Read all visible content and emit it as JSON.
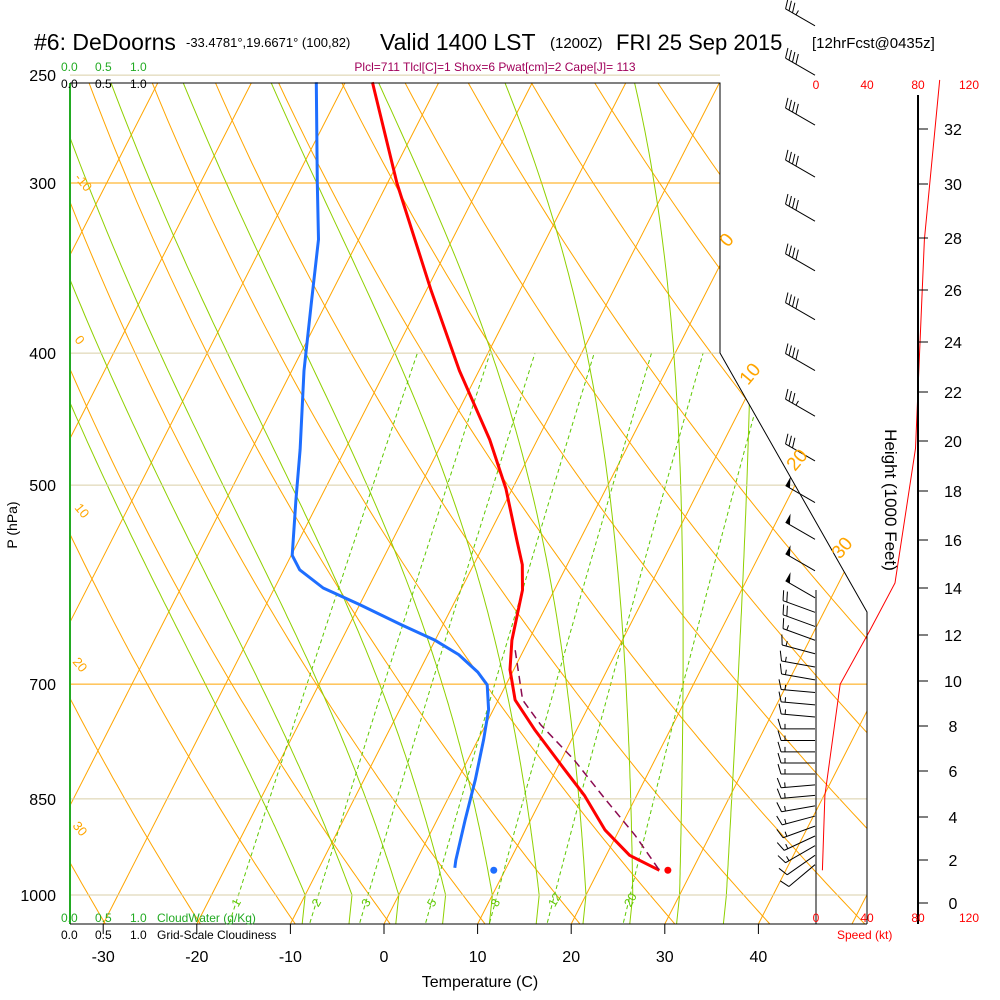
{
  "header": {
    "station": "#6: DeDoorns",
    "coords": "-33.4781°,19.6671° (100,82)",
    "valid": "Valid 1400 LST",
    "utc": "(1200Z)",
    "date": "FRI 25 Sep 2015",
    "forecast": "[12hrFcst@0435z]",
    "params": "Plcl=711 Tlcl[C]=1 Shox=6 Pwat[cm]=2 Cape[J]= 113"
  },
  "colors": {
    "temperature": "#ff0000",
    "dewpoint": "#1e6eff",
    "parcel": "#8b0a50",
    "isotherm": "#ffa500",
    "moist": "#8fd000",
    "mixing": "#5ec800",
    "wind_speed": "#ff0000"
  },
  "chart_data": {
    "type": "line",
    "title": "Skew-T log-P sounding",
    "xlabel": "Temperature (C)",
    "ylabel": "P (hPa)",
    "y2label": "Height (1000 Feet)",
    "x_ticks": [
      "-30",
      "-20",
      "-10",
      "0",
      "10",
      "20",
      "30",
      "40"
    ],
    "x_tick_values": [
      -30,
      -20,
      -10,
      0,
      10,
      20,
      30,
      40
    ],
    "p_ticks": [
      "250",
      "300",
      "400",
      "500",
      "700",
      "850",
      "1000"
    ],
    "p_tick_values": [
      250,
      300,
      400,
      500,
      700,
      850,
      1000
    ],
    "height_ticks": [
      "0",
      "2",
      "4",
      "6",
      "8",
      "10",
      "12",
      "14",
      "16",
      "18",
      "20",
      "22",
      "24",
      "26",
      "28",
      "30",
      "32"
    ],
    "isotherm_labels_left": [
      "-10",
      "0",
      "10",
      "20",
      "30"
    ],
    "isotherm_labels_right": [
      "0",
      "10",
      "20",
      "30"
    ],
    "mixing_ratio_labels": [
      "1",
      "2",
      "3",
      "5",
      "8",
      "12",
      "20"
    ],
    "mixing_ratio_values": [
      1,
      2,
      3,
      5,
      8,
      12,
      20
    ],
    "cloud_top": {
      "scale": [
        "0.0",
        "0.5",
        "1.0"
      ]
    },
    "cloud_bottom": {
      "green_scale": [
        "0.0",
        "0.5",
        "1.0"
      ],
      "green_label": "CloudWater (g/Kg)",
      "black_scale": [
        "0.0",
        "0.5",
        "1.0"
      ],
      "black_label": "Grid-Scale Cloudiness"
    },
    "speed_axis": {
      "ticks": [
        "0",
        "40",
        "80",
        "120"
      ],
      "values": [
        0,
        40,
        80,
        120
      ],
      "label": "Speed (kt)"
    },
    "series": [
      {
        "name": "Temperature",
        "p": [
          253,
          300,
          359,
          412,
          463,
          503,
          549,
          572,
          597,
          650,
          683,
          719,
          757,
          809,
          845,
          896,
          935,
          959
        ],
        "t": [
          -47.1,
          -39.0,
          -29.6,
          -22.1,
          -15.1,
          -10.7,
          -6.7,
          -4.8,
          -3.4,
          -1.8,
          -0.4,
          1.8,
          5.6,
          10.9,
          14.4,
          18.5,
          22.5,
          26.5
        ]
      },
      {
        "name": "Dewpoint",
        "p": [
          253,
          300,
          330,
          366,
          412,
          471,
          513,
          563,
          577,
          595,
          612,
          633,
          650,
          666,
          686,
          701,
          731,
          769,
          823,
          881,
          943,
          955
        ],
        "t": [
          -53.1,
          -47.5,
          -44.3,
          -41.7,
          -38.7,
          -34.8,
          -32.5,
          -29.9,
          -28.3,
          -24.8,
          -20.0,
          -14.5,
          -10.0,
          -6.7,
          -3.7,
          -2.0,
          -0.5,
          0.6,
          1.9,
          3.0,
          4.2,
          4.5
        ]
      },
      {
        "name": "Parcel",
        "p": [
          661,
          719,
          750,
          796,
          851,
          904,
          959
        ],
        "t": [
          -0.9,
          2.6,
          5.9,
          11.4,
          16.9,
          22.0,
          26.5
        ]
      }
    ],
    "surface_points": {
      "temperature": {
        "p": 959,
        "t": 27.4
      },
      "dewpoint": {
        "p": 959,
        "t": 8.8
      }
    },
    "wind_speed_profile": {
      "p": [
        959,
        845,
        700,
        640,
        590,
        470,
        330,
        252
      ],
      "speed_kt": [
        5,
        7,
        19,
        42,
        62,
        78,
        85,
        97
      ]
    },
    "winds": [
      {
        "p": 230,
        "dir": 300,
        "spd": 35
      },
      {
        "p": 250,
        "dir": 300,
        "spd": 40
      },
      {
        "p": 272,
        "dir": 300,
        "spd": 40
      },
      {
        "p": 297,
        "dir": 300,
        "spd": 40
      },
      {
        "p": 320,
        "dir": 300,
        "spd": 40
      },
      {
        "p": 348,
        "dir": 300,
        "spd": 40
      },
      {
        "p": 378,
        "dir": 300,
        "spd": 40
      },
      {
        "p": 412,
        "dir": 300,
        "spd": 40
      },
      {
        "p": 445,
        "dir": 300,
        "spd": 35
      },
      {
        "p": 480,
        "dir": 300,
        "spd": 30
      },
      {
        "p": 515,
        "dir": 300,
        "spd": 50
      },
      {
        "p": 548,
        "dir": 300,
        "spd": 50
      },
      {
        "p": 578,
        "dir": 300,
        "spd": 50
      },
      {
        "p": 605,
        "dir": 300,
        "spd": 50
      },
      {
        "p": 620,
        "dir": 290,
        "spd": 20
      },
      {
        "p": 635,
        "dir": 290,
        "spd": 20
      },
      {
        "p": 650,
        "dir": 290,
        "spd": 15
      },
      {
        "p": 665,
        "dir": 285,
        "spd": 15
      },
      {
        "p": 680,
        "dir": 280,
        "spd": 15
      },
      {
        "p": 695,
        "dir": 280,
        "spd": 15
      },
      {
        "p": 710,
        "dir": 275,
        "spd": 15
      },
      {
        "p": 725,
        "dir": 275,
        "spd": 15
      },
      {
        "p": 740,
        "dir": 275,
        "spd": 15
      },
      {
        "p": 755,
        "dir": 270,
        "spd": 15
      },
      {
        "p": 770,
        "dir": 270,
        "spd": 15
      },
      {
        "p": 785,
        "dir": 270,
        "spd": 15
      },
      {
        "p": 800,
        "dir": 270,
        "spd": 15
      },
      {
        "p": 815,
        "dir": 270,
        "spd": 15
      },
      {
        "p": 830,
        "dir": 265,
        "spd": 15
      },
      {
        "p": 845,
        "dir": 265,
        "spd": 15
      },
      {
        "p": 860,
        "dir": 260,
        "spd": 15
      },
      {
        "p": 875,
        "dir": 255,
        "spd": 15
      },
      {
        "p": 890,
        "dir": 250,
        "spd": 15
      },
      {
        "p": 905,
        "dir": 245,
        "spd": 15
      },
      {
        "p": 920,
        "dir": 240,
        "spd": 15
      },
      {
        "p": 935,
        "dir": 235,
        "spd": 10
      },
      {
        "p": 950,
        "dir": 230,
        "spd": 10
      }
    ]
  }
}
